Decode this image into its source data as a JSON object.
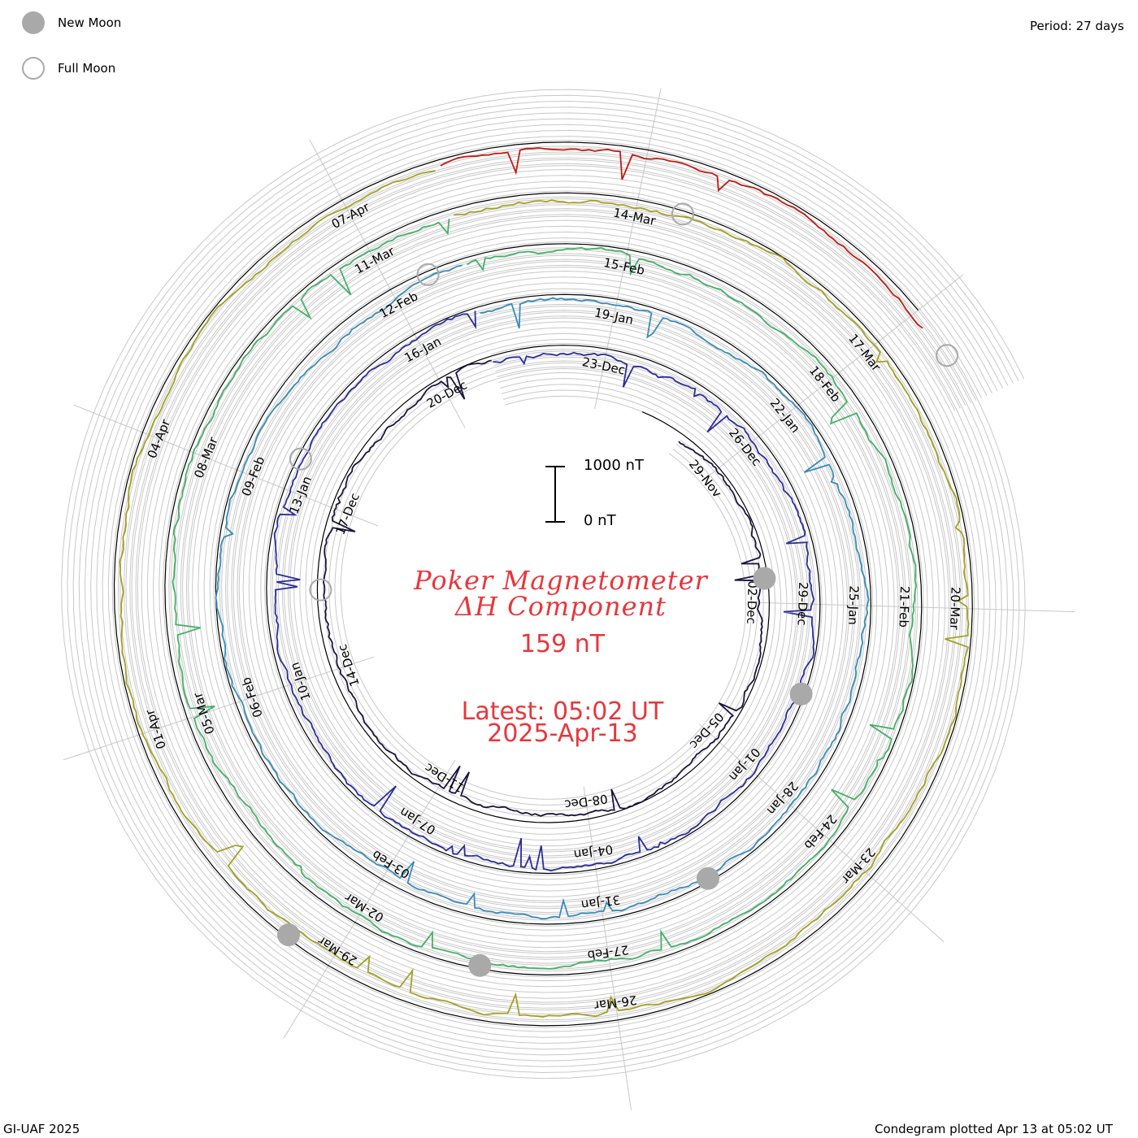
{
  "period_label": "Period: 27 days",
  "footer_left": "GI-UAF 2025",
  "footer_right": "Condegram plotted Apr 13 at 05:02 UT",
  "legend": {
    "new_moon": "New Moon",
    "full_moon": "Full Moon",
    "new_moon_color": "#a9a9a9",
    "full_moon_color": "#a9a9a9"
  },
  "center": {
    "title_line1": "Poker Magnetometer",
    "title_line2": "ΔH Component",
    "current_value": "159 nT",
    "latest_label": "Latest: 05:02 UT",
    "latest_date": "2025-Apr-13",
    "text_color": "#e8363c"
  },
  "scale_bar": {
    "top_label": "1000 nT",
    "bottom_label": "0 nT",
    "range_nT": 1000
  },
  "chart_data": {
    "type": "condegram",
    "start": "2024-11-24",
    "end": "2025-04-13 05:02",
    "period_days": 27,
    "rings": [
      {
        "start": "2024-11-24",
        "color": "#1a1540"
      },
      {
        "start": "2024-12-21",
        "color": "#2c2e99"
      },
      {
        "start": "2025-01-17",
        "color": "#3a8cb8"
      },
      {
        "start": "2025-02-13",
        "color": "#46b068"
      },
      {
        "start": "2025-03-12",
        "color": "#a6a024"
      },
      {
        "start": "2025-04-08",
        "color": "#c01c12"
      }
    ],
    "date_labels": [
      "29-Nov",
      "02-Dec",
      "05-Dec",
      "08-Dec",
      "11-Dec",
      "14-Dec",
      "17-Dec",
      "20-Dec",
      "23-Dec",
      "26-Dec",
      "29-Dec",
      "01-Jan",
      "04-Jan",
      "07-Jan",
      "10-Jan",
      "13-Jan",
      "16-Jan",
      "19-Jan",
      "22-Jan",
      "25-Jan",
      "28-Jan",
      "31-Jan",
      "03-Feb",
      "06-Feb",
      "09-Feb",
      "12-Feb",
      "15-Feb",
      "18-Feb",
      "21-Feb",
      "24-Feb",
      "27-Feb",
      "02-Mar",
      "05-Mar",
      "08-Mar",
      "11-Mar",
      "14-Mar",
      "17-Mar",
      "20-Mar",
      "23-Mar",
      "26-Mar",
      "29-Mar",
      "01-Apr",
      "04-Apr",
      "07-Apr"
    ],
    "new_moons": [
      "2024-12-01",
      "2024-12-30",
      "2025-01-29",
      "2025-02-28",
      "2025-03-29"
    ],
    "full_moons": [
      "2024-12-15",
      "2025-01-13",
      "2025-02-12",
      "2025-03-14",
      "2025-04-13"
    ],
    "current_value_nT": 159
  }
}
